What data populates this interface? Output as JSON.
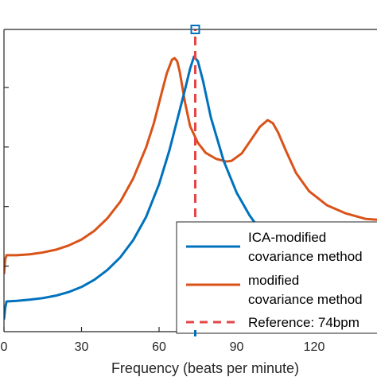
{
  "chart_data": {
    "type": "line",
    "title": "",
    "xlabel": "Frequency (beats per minute)",
    "ylabel": "",
    "xlim": [
      0,
      150
    ],
    "ylim": [
      0,
      1
    ],
    "x_ticks": [
      0,
      30,
      60,
      90,
      120
    ],
    "x_tick_labels": [
      "0",
      "30",
      "60",
      "90",
      "120"
    ],
    "y_ticks": [
      0.217,
      0.414,
      0.611,
      0.808
    ],
    "grid": false,
    "legend_placement": "bottom-right",
    "series": [
      {
        "name": "ICA-modified covariance method",
        "color": "#0072BD",
        "x": [
          0,
          0.5,
          1,
          5,
          10,
          15,
          20,
          25,
          30,
          35,
          40,
          45,
          50,
          55,
          60,
          64,
          67,
          70,
          72,
          73.5,
          75,
          77,
          80,
          85,
          90,
          95,
          100,
          105,
          110,
          115,
          118,
          122,
          126,
          130,
          135,
          140,
          145,
          150
        ],
        "y": [
          0.04,
          0.08,
          0.1,
          0.102,
          0.106,
          0.111,
          0.119,
          0.131,
          0.148,
          0.172,
          0.204,
          0.246,
          0.303,
          0.38,
          0.488,
          0.6,
          0.7,
          0.8,
          0.87,
          0.91,
          0.895,
          0.83,
          0.71,
          0.565,
          0.46,
          0.385,
          0.325,
          0.285,
          0.26,
          0.247,
          0.244,
          0.247,
          0.257,
          0.272,
          0.294,
          0.319,
          0.342,
          0.36
        ]
      },
      {
        "name": "modified covariance method",
        "color": "#D95319",
        "x": [
          0,
          0.5,
          1,
          5,
          10,
          15,
          20,
          25,
          30,
          35,
          40,
          45,
          50,
          55,
          58,
          61,
          63,
          65,
          66,
          67,
          68,
          70,
          72,
          75,
          78,
          82,
          86,
          88,
          92,
          96,
          99,
          102,
          104,
          106,
          109,
          113,
          118,
          125,
          132,
          140,
          145,
          150
        ],
        "y": [
          0.19,
          0.24,
          0.253,
          0.253,
          0.256,
          0.262,
          0.271,
          0.285,
          0.305,
          0.334,
          0.375,
          0.43,
          0.507,
          0.61,
          0.69,
          0.79,
          0.855,
          0.9,
          0.905,
          0.895,
          0.86,
          0.76,
          0.68,
          0.625,
          0.592,
          0.572,
          0.563,
          0.565,
          0.59,
          0.64,
          0.678,
          0.7,
          0.69,
          0.66,
          0.6,
          0.525,
          0.465,
          0.418,
          0.392,
          0.373,
          0.37,
          0.37
        ]
      },
      {
        "name": "Reference: 74bpm",
        "color": "#E64545",
        "style": "dashed",
        "x": [
          74,
          74
        ],
        "y": [
          0,
          1
        ]
      }
    ],
    "reference_marker_x": 74
  }
}
